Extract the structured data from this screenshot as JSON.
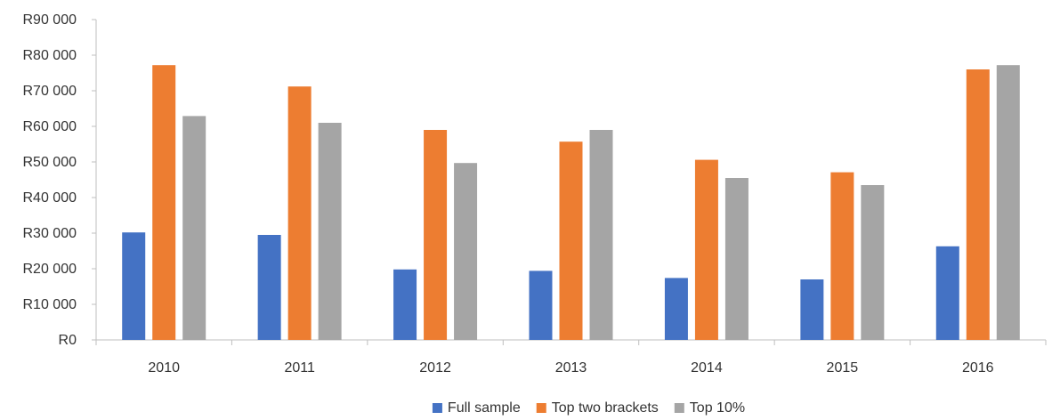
{
  "chart_data": {
    "type": "bar",
    "title": "",
    "xlabel": "",
    "ylabel": "",
    "categories": [
      "2010",
      "2011",
      "2012",
      "2013",
      "2014",
      "2015",
      "2016"
    ],
    "series": [
      {
        "name": "Full sample",
        "color": "#4472C4",
        "values": [
          30200,
          29500,
          19800,
          19400,
          17400,
          17000,
          26300
        ]
      },
      {
        "name": "Top two brackets",
        "color": "#ED7D31",
        "values": [
          77200,
          71200,
          59000,
          55700,
          50600,
          47100,
          76000
        ]
      },
      {
        "name": "Top 10%",
        "color": "#A5A5A5",
        "values": [
          62900,
          61000,
          49700,
          59000,
          45500,
          43500,
          77200
        ]
      }
    ],
    "ylim": [
      0,
      90000
    ],
    "y_ticks": [
      0,
      10000,
      20000,
      30000,
      40000,
      50000,
      60000,
      70000,
      80000,
      90000
    ],
    "y_tick_labels": [
      "R0",
      "R10 000",
      "R20 000",
      "R30 000",
      "R40 000",
      "R50 000",
      "R60 000",
      "R70 000",
      "R80 000",
      "R90 000"
    ],
    "grid": false,
    "legend_position": "bottom"
  }
}
